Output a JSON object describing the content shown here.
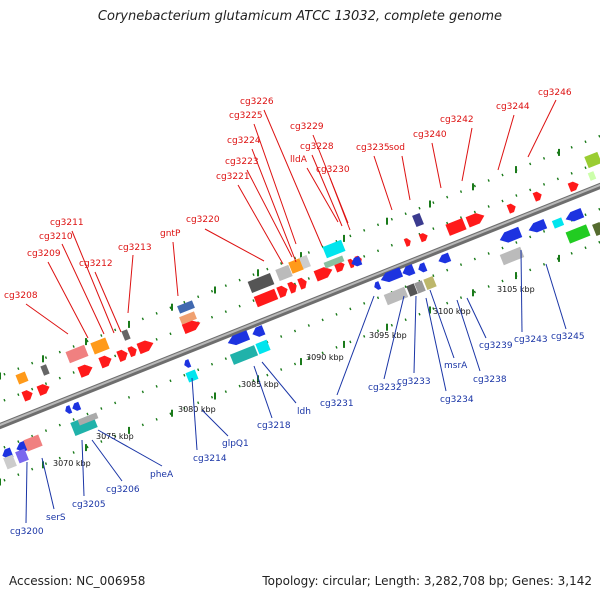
{
  "title": "Corynebacterium glutamicum ATCC 13032, complete genome",
  "footer": {
    "accession": "Accession: NC_006958",
    "summary": "Topology: circular; Length: 3,282,708 bp; Genes: 3,142"
  },
  "colors": {
    "forward_label": "#dd1111",
    "reverse_label": "#1a35a6",
    "forward_gene": "#ff1a1a",
    "reverse_gene": "#1d33e0",
    "tick_major": "#1a7a1a",
    "backbone": "#8a8a8a"
  },
  "scale_labels": [
    "3070 kbp",
    "3075 kbp",
    "3080 kbp",
    "3085 kbp",
    "3090 kbp",
    "3095 kbp",
    "3100 kbp",
    "3105 kbp"
  ],
  "forward_labels": [
    "cg3208",
    "cg3209",
    "cg3210",
    "cg3211",
    "cg3212",
    "cg3213",
    "gntP",
    "cg3220",
    "cg3221",
    "cg3223",
    "cg3224",
    "cg3225",
    "cg3226",
    "lldA",
    "cg3228",
    "cg3229",
    "cg3230",
    "cg3235",
    "sod",
    "cg3240",
    "cg3242",
    "cg3244",
    "cg3246"
  ],
  "reverse_labels": [
    "cg3200",
    "serS",
    "cg3205",
    "cg3206",
    "pheA",
    "cg3214",
    "glpQ1",
    "cg3218",
    "ldh",
    "cg3231",
    "cg3232",
    "cg3233",
    "cg3234",
    "msrA",
    "cg3238",
    "cg3239",
    "cg3243",
    "cg3245"
  ]
}
